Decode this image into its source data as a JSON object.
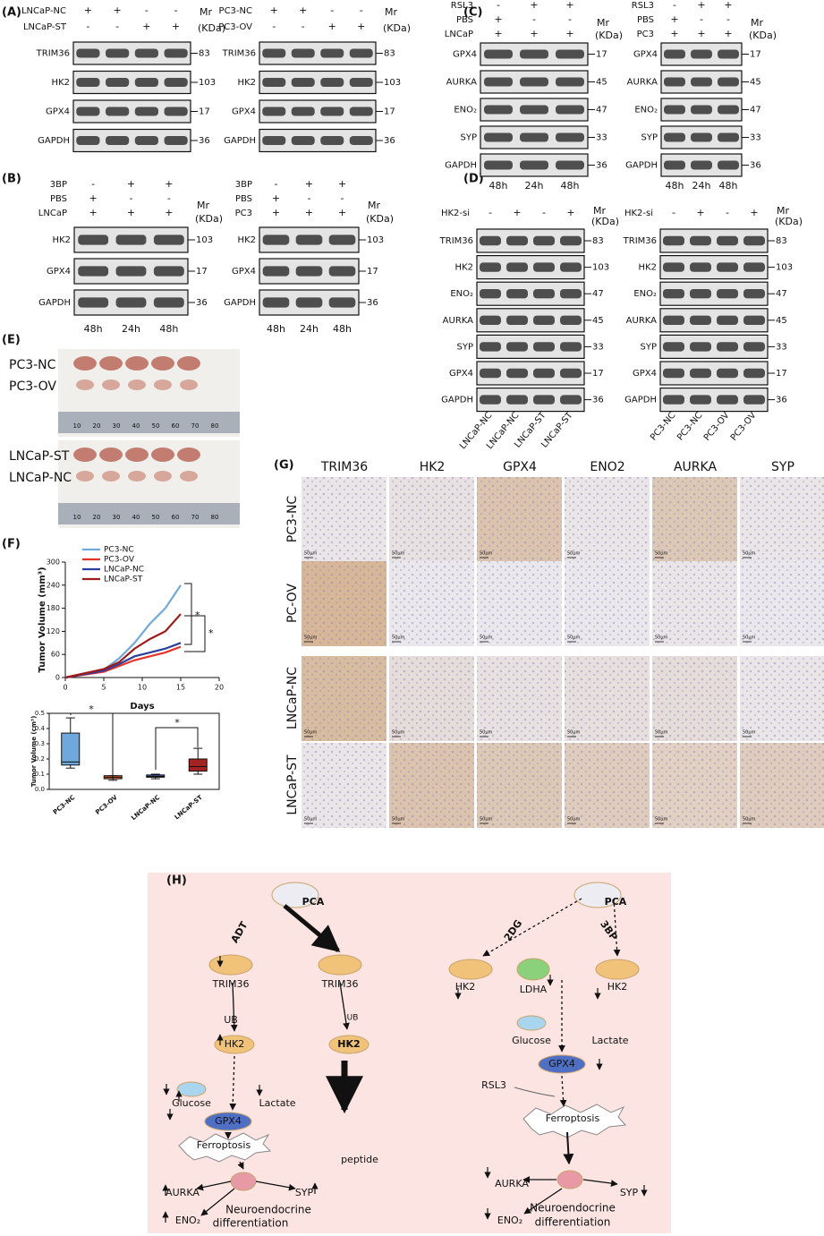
{
  "panels": {
    "A": {
      "label": "(A)",
      "blots": [
        {
          "conditions": [
            {
              "name": "LNCaP-NC",
              "signs": [
                "+",
                "+",
                "-",
                "-"
              ]
            },
            {
              "name": "LNCaP-ST",
              "signs": [
                "-",
                "-",
                "+",
                "+"
              ]
            }
          ],
          "mr": "Mr",
          "kda": "(KDa)",
          "bands": [
            {
              "name": "TRIM36",
              "mw": 83
            },
            {
              "name": "HK2",
              "mw": 103
            },
            {
              "name": "GPX4",
              "mw": 17
            },
            {
              "name": "GAPDH",
              "mw": 36
            }
          ]
        },
        {
          "conditions": [
            {
              "name": "PC3-NC",
              "signs": [
                "+",
                "+",
                "-",
                "-"
              ]
            },
            {
              "name": "PC3-OV",
              "signs": [
                "-",
                "-",
                "+",
                "+"
              ]
            }
          ],
          "mr": "Mr",
          "kda": "(KDa)",
          "bands": [
            {
              "name": "TRIM36",
              "mw": 83
            },
            {
              "name": "HK2",
              "mw": 103
            },
            {
              "name": "GPX4",
              "mw": 17
            },
            {
              "name": "GAPDH",
              "mw": 36
            }
          ]
        }
      ]
    },
    "B": {
      "label": "(B)",
      "blots": [
        {
          "conditions": [
            {
              "name": "3BP",
              "signs": [
                "-",
                "+",
                "+"
              ]
            },
            {
              "name": "PBS",
              "signs": [
                "+",
                "-",
                "-"
              ]
            },
            {
              "name": "LNCaP",
              "signs": [
                "+",
                "+",
                "+"
              ]
            }
          ],
          "mr": "Mr",
          "kda": "(KDa)",
          "bands": [
            {
              "name": "HK2",
              "mw": 103
            },
            {
              "name": "GPX4",
              "mw": 17
            },
            {
              "name": "GAPDH",
              "mw": 36
            }
          ],
          "lanes": [
            "48h",
            "24h",
            "48h"
          ]
        },
        {
          "conditions": [
            {
              "name": "3BP",
              "signs": [
                "-",
                "+",
                "+"
              ]
            },
            {
              "name": "PBS",
              "signs": [
                "+",
                "-",
                "-"
              ]
            },
            {
              "name": "PC3",
              "signs": [
                "+",
                "+",
                "+"
              ]
            }
          ],
          "mr": "Mr",
          "kda": "(KDa)",
          "bands": [
            {
              "name": "HK2",
              "mw": 103
            },
            {
              "name": "GPX4",
              "mw": 17
            },
            {
              "name": "GAPDH",
              "mw": 36
            }
          ],
          "lanes": [
            "48h",
            "24h",
            "48h"
          ]
        }
      ]
    },
    "C": {
      "label": "(C)",
      "blots": [
        {
          "conditions": [
            {
              "name": "RSL3",
              "signs": [
                "-",
                "+",
                "+"
              ]
            },
            {
              "name": "PBS",
              "signs": [
                "+",
                "-",
                "-"
              ]
            },
            {
              "name": "LNCaP",
              "signs": [
                "+",
                "+",
                "+"
              ]
            }
          ],
          "mr": "Mr",
          "kda": "(KDa)",
          "bands": [
            {
              "name": "GPX4",
              "mw": 17
            },
            {
              "name": "AURKA",
              "mw": 45
            },
            {
              "name": "ENO₂",
              "mw": 47
            },
            {
              "name": "SYP",
              "mw": 33
            },
            {
              "name": "GAPDH",
              "mw": 36
            }
          ],
          "lanes": [
            "48h",
            "24h",
            "48h"
          ]
        },
        {
          "conditions": [
            {
              "name": "RSL3",
              "signs": [
                "-",
                "+",
                "+"
              ]
            },
            {
              "name": "PBS",
              "signs": [
                "+",
                "-",
                "-"
              ]
            },
            {
              "name": "PC3",
              "signs": [
                "+",
                "+",
                "+"
              ]
            }
          ],
          "mr": "Mr",
          "kda": "(KDa)",
          "bands": [
            {
              "name": "GPX4",
              "mw": 17
            },
            {
              "name": "AURKA",
              "mw": 45
            },
            {
              "name": "ENO₂",
              "mw": 47
            },
            {
              "name": "SYP",
              "mw": 33
            },
            {
              "name": "GAPDH",
              "mw": 36
            }
          ],
          "lanes": [
            "48h",
            "24h",
            "48h"
          ]
        }
      ]
    },
    "D": {
      "label": "(D)",
      "blots": [
        {
          "conditions": [
            {
              "name": "HK2-si",
              "signs": [
                "-",
                "+",
                "-",
                "+"
              ]
            }
          ],
          "mr": "Mr",
          "kda": "(KDa)",
          "bands": [
            {
              "name": "TRIM36",
              "mw": 83
            },
            {
              "name": "HK2",
              "mw": 103
            },
            {
              "name": "ENO₂",
              "mw": 47
            },
            {
              "name": "AURKA",
              "mw": 45
            },
            {
              "name": "SYP",
              "mw": 33
            },
            {
              "name": "GPX4",
              "mw": 17
            },
            {
              "name": "GAPDH",
              "mw": 36
            }
          ],
          "lanes": [
            "LNCaP-NC",
            "LNCaP-NC",
            "LNCaP-ST",
            "LNCaP-ST"
          ]
        },
        {
          "conditions": [
            {
              "name": "HK2-si",
              "signs": [
                "-",
                "+",
                "-",
                "+"
              ]
            }
          ],
          "mr": "Mr",
          "kda": "(KDa)",
          "bands": [
            {
              "name": "TRIM36",
              "mw": 83
            },
            {
              "name": "HK2",
              "mw": 103
            },
            {
              "name": "ENO₂",
              "mw": 47
            },
            {
              "name": "AURKA",
              "mw": 45
            },
            {
              "name": "SYP",
              "mw": 33
            },
            {
              "name": "GPX4",
              "mw": 17
            },
            {
              "name": "GAPDH",
              "mw": 36
            }
          ],
          "lanes": [
            "PC3-NC",
            "PC3-NC",
            "PC3-OV",
            "PC3-OV"
          ]
        }
      ]
    },
    "E": {
      "label": "(E)",
      "groups": [
        "PC3-NC",
        "PC3-OV",
        "LNCaP-ST",
        "LNCaP-NC"
      ],
      "ruler": [
        10,
        20,
        30,
        40,
        50,
        60,
        70,
        80
      ]
    },
    "F": {
      "label": "(F)"
    },
    "G": {
      "label": "(G)",
      "markers": [
        "TRIM36",
        "HK2",
        "GPX4",
        "ENO2",
        "AURKA",
        "SYP"
      ],
      "groups": [
        "PC3-NC",
        "PC-OV",
        "LNCaP-NC",
        "LNCaP-ST"
      ],
      "scale": "50μm"
    },
    "H": {
      "label": "(H)",
      "left": {
        "pca": "PCA",
        "adt": "ADT",
        "trim36": "TRIM36",
        "ub": "UB",
        "hk2": "HK2",
        "glucose": "Glucose",
        "lactate": "Lactate",
        "gpx4": "GPX4",
        "ferroptosis": "Ferroptosis",
        "peptide": "peptide",
        "aurka": "AURKA",
        "syp": "SYP",
        "eno2": "ENO₂",
        "ned": [
          "Neuroendocrine",
          "differentiation"
        ]
      },
      "right": {
        "pca": "PCA",
        "dg": "2DG",
        "bp": "3BP",
        "hk2": "HK2",
        "ldha": "LDHA",
        "glucose": "Glucose",
        "lactate": "Lactate",
        "gpx4": "GPX4",
        "rsl3": "RSL3",
        "ferroptosis": "Ferroptosis",
        "aurka": "AURKA",
        "syp": "SYP",
        "eno2": "ENO₂",
        "ned": [
          "Neuroendocrine",
          "differentiation"
        ]
      }
    }
  },
  "chart_data": [
    {
      "type": "line",
      "xlabel": "Days",
      "ylabel": "Tumor Volume (mm³)",
      "x": [
        0,
        5,
        7,
        9,
        11,
        13,
        15
      ],
      "xlim": [
        0,
        20
      ],
      "xticks": [
        0,
        5,
        10,
        15,
        20
      ],
      "ylim": [
        0,
        300
      ],
      "yticks": [
        0,
        60,
        120,
        180,
        240,
        300
      ],
      "series": [
        {
          "name": "PC3-NC",
          "color": "#6fa8dc",
          "values": [
            0,
            20,
            50,
            90,
            140,
            180,
            240
          ]
        },
        {
          "name": "PC3-OV",
          "color": "#e8312a",
          "values": [
            0,
            15,
            30,
            45,
            55,
            65,
            80
          ]
        },
        {
          "name": "LNCaP-NC",
          "color": "#2b3f9e",
          "values": [
            0,
            18,
            35,
            55,
            65,
            75,
            90
          ]
        },
        {
          "name": "LNCaP-ST",
          "color": "#9e1c1c",
          "values": [
            0,
            22,
            40,
            75,
            100,
            120,
            165
          ]
        }
      ],
      "annotations": [
        "*",
        "*"
      ]
    },
    {
      "type": "box",
      "ylabel": "Tumor Volume (cm³)",
      "categories": [
        "PC3-NC",
        "PC3-OV",
        "LNCaP-NC",
        "LNCaP-ST"
      ],
      "ylim": [
        0,
        0.5
      ],
      "yticks": [
        {
          "value": 0,
          "label": "0.0"
        },
        0.1,
        0.2,
        0.3,
        0.4,
        0.5
      ],
      "boxes": [
        {
          "color": "#6fa8dc",
          "min": 0.14,
          "q1": 0.16,
          "median": 0.18,
          "q3": 0.37,
          "max": 0.47
        },
        {
          "color": "#e8622a",
          "min": 0.06,
          "q1": 0.07,
          "median": 0.08,
          "q3": 0.09,
          "max": 0.09
        },
        {
          "color": "#3d5fc4",
          "min": 0.07,
          "q1": 0.08,
          "median": 0.085,
          "q3": 0.095,
          "max": 0.1
        },
        {
          "color": "#a52222",
          "min": 0.1,
          "q1": 0.12,
          "median": 0.15,
          "q3": 0.2,
          "max": 0.27
        }
      ],
      "annotations": [
        "*",
        "*"
      ]
    }
  ]
}
